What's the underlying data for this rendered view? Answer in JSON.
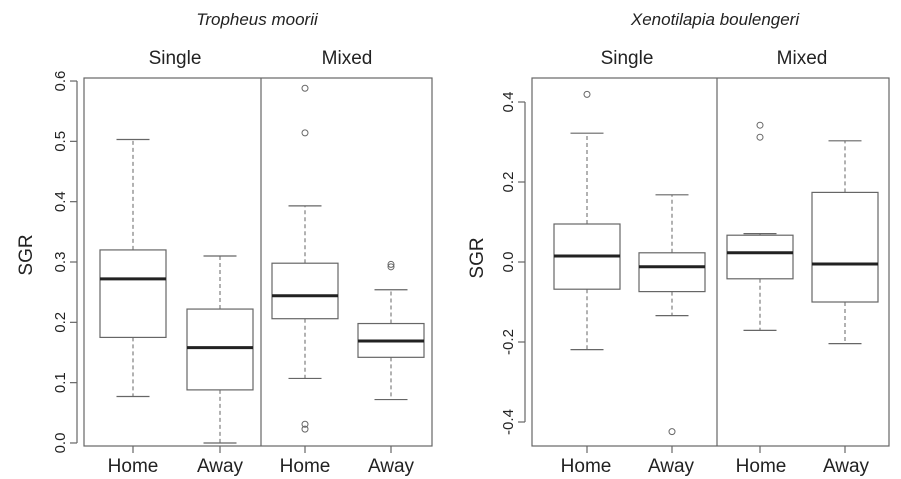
{
  "chart_data": [
    {
      "type": "box",
      "title": "Tropheus moorii",
      "ylabel": "SGR",
      "ylim": [
        -0.005,
        0.605
      ],
      "yticks": [
        "0.0",
        "0.1",
        "0.2",
        "0.3",
        "0.4",
        "0.5",
        "0.6"
      ],
      "groups": [
        "Single",
        "Mixed"
      ],
      "categories": [
        "Home",
        "Away",
        "Home",
        "Away"
      ],
      "boxes": [
        {
          "group": "Single",
          "category": "Home",
          "whisker_low": 0.077,
          "q1": 0.175,
          "median": 0.272,
          "q3": 0.32,
          "whisker_high": 0.503,
          "outliers": []
        },
        {
          "group": "Single",
          "category": "Away",
          "whisker_low": 0.0,
          "q1": 0.088,
          "median": 0.158,
          "q3": 0.222,
          "whisker_high": 0.31,
          "outliers": []
        },
        {
          "group": "Mixed",
          "category": "Home",
          "whisker_low": 0.107,
          "q1": 0.206,
          "median": 0.244,
          "q3": 0.298,
          "whisker_high": 0.393,
          "outliers": [
            0.588,
            0.514,
            0.031,
            0.023
          ]
        },
        {
          "group": "Mixed",
          "category": "Away",
          "whisker_low": 0.072,
          "q1": 0.142,
          "median": 0.169,
          "q3": 0.198,
          "whisker_high": 0.254,
          "outliers": [
            0.296,
            0.292
          ]
        }
      ]
    },
    {
      "type": "box",
      "title": "Xenotilapia boulengeri",
      "ylabel": "SGR",
      "ylim": [
        -0.46,
        0.46
      ],
      "yticks": [
        "-0.4",
        "-0.2",
        "0.0",
        "0.2",
        "0.4"
      ],
      "groups": [
        "Single",
        "Mixed"
      ],
      "categories": [
        "Home",
        "Away",
        "Home",
        "Away"
      ],
      "boxes": [
        {
          "group": "Single",
          "category": "Home",
          "whisker_low": -0.219,
          "q1": -0.068,
          "median": 0.015,
          "q3": 0.095,
          "whisker_high": 0.322,
          "outliers": [
            0.419
          ]
        },
        {
          "group": "Single",
          "category": "Away",
          "whisker_low": -0.134,
          "q1": -0.074,
          "median": -0.012,
          "q3": 0.023,
          "whisker_high": 0.168,
          "outliers": [
            -0.424
          ]
        },
        {
          "group": "Mixed",
          "category": "Home",
          "whisker_low": -0.171,
          "q1": -0.042,
          "median": 0.023,
          "q3": 0.067,
          "whisker_high": 0.071,
          "outliers": [
            0.342,
            0.312
          ]
        },
        {
          "group": "Mixed",
          "category": "Away",
          "whisker_low": -0.204,
          "q1": -0.1,
          "median": -0.005,
          "q3": 0.174,
          "whisker_high": 0.303,
          "outliers": []
        }
      ]
    }
  ]
}
